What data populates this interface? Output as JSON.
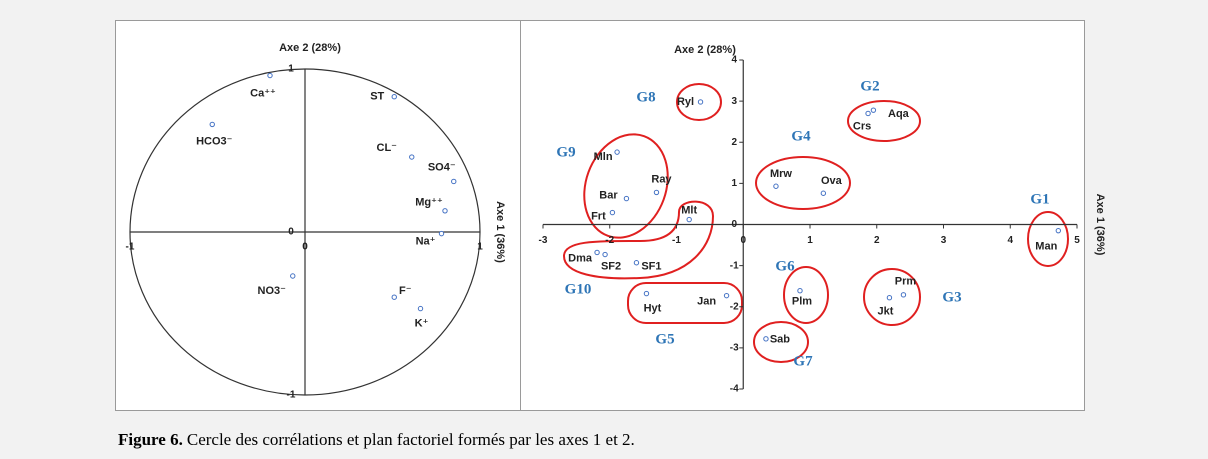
{
  "chart_data": [
    {
      "type": "scatter",
      "xlabel": "Axe 1 (36%)",
      "ylabel": "Axe 2 (28%)",
      "xlim": [
        -1,
        1
      ],
      "ylim": [
        -1,
        1
      ],
      "xticks": [
        -1,
        0,
        1
      ],
      "yticks": [
        -1,
        0,
        1
      ],
      "color": "#4472c4",
      "correlation_circle": true,
      "point_labels": [
        "Ca⁺⁺",
        "HCO3⁻",
        "ST",
        "CL⁻",
        "SO4⁻",
        "Mg⁺⁺",
        "Na⁺",
        "NO3⁻",
        "F⁻",
        "K⁺"
      ],
      "x": [
        -0.2,
        -0.53,
        0.51,
        0.61,
        0.85,
        0.8,
        0.78,
        -0.07,
        0.51,
        0.66
      ],
      "values": [
        0.96,
        0.66,
        0.83,
        0.46,
        0.31,
        0.13,
        -0.01,
        -0.27,
        -0.4,
        -0.47
      ]
    },
    {
      "type": "scatter",
      "xlabel": "Axe 1 (36%)",
      "ylabel": "Axe 2 (28%)",
      "xlim": [
        -3,
        5
      ],
      "ylim": [
        -4,
        4
      ],
      "xticks": [
        -3,
        -2,
        -1,
        0,
        1,
        2,
        3,
        4,
        5
      ],
      "yticks": [
        -4,
        -3,
        -2,
        -1,
        0,
        1,
        2,
        3,
        4
      ],
      "color": "#4472c4",
      "correlation_circle": false,
      "point_labels": [
        "Ryl",
        "Crs",
        "Aqa",
        "Mln",
        "Ray",
        "Bar",
        "Frt",
        "Mlt",
        "Mrw",
        "Ova",
        "Man",
        "Dma",
        "SF2",
        "SF1",
        "Hyt",
        "Jan",
        "Plm",
        "Jkt",
        "Prm",
        "Sab"
      ],
      "x": [
        -0.64,
        1.87,
        1.95,
        -1.89,
        -1.3,
        -1.75,
        -1.96,
        -0.81,
        0.49,
        1.2,
        4.72,
        -2.19,
        -2.07,
        -1.6,
        -1.45,
        -0.25,
        0.85,
        2.19,
        2.4,
        0.34
      ],
      "values": [
        2.98,
        2.7,
        2.78,
        1.76,
        0.78,
        0.63,
        0.29,
        0.12,
        0.93,
        0.76,
        -0.15,
        -0.68,
        -0.73,
        -0.93,
        -1.68,
        -1.73,
        -1.61,
        -1.78,
        -1.71,
        -2.78
      ],
      "annotations": [
        "G8",
        "G2",
        "G4",
        "G9",
        "G10",
        "G5",
        "G6",
        "G3",
        "G7",
        "G1"
      ]
    }
  ],
  "caption": {
    "label": "Figure 6.",
    "text": "Cercle des corrélations et plan factoriel formés par les axes 1 et 2."
  }
}
